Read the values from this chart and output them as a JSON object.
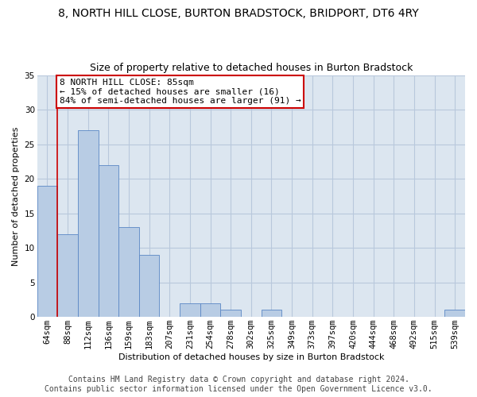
{
  "title": "8, NORTH HILL CLOSE, BURTON BRADSTOCK, BRIDPORT, DT6 4RY",
  "subtitle": "Size of property relative to detached houses in Burton Bradstock",
  "xlabel": "Distribution of detached houses by size in Burton Bradstock",
  "ylabel": "Number of detached properties",
  "categories": [
    "64sqm",
    "88sqm",
    "112sqm",
    "136sqm",
    "159sqm",
    "183sqm",
    "207sqm",
    "231sqm",
    "254sqm",
    "278sqm",
    "302sqm",
    "325sqm",
    "349sqm",
    "373sqm",
    "397sqm",
    "420sqm",
    "444sqm",
    "468sqm",
    "492sqm",
    "515sqm",
    "539sqm"
  ],
  "values": [
    19,
    12,
    27,
    22,
    13,
    9,
    0,
    2,
    2,
    1,
    0,
    1,
    0,
    0,
    0,
    0,
    0,
    0,
    0,
    0,
    1
  ],
  "bar_color": "#b8cce4",
  "bar_edge_color": "#5a87c5",
  "property_line_x": 0.5,
  "property_line_color": "#cc0000",
  "annotation_text": "8 NORTH HILL CLOSE: 85sqm\n← 15% of detached houses are smaller (16)\n84% of semi-detached houses are larger (91) →",
  "annotation_box_color": "#cc0000",
  "ylim": [
    0,
    35
  ],
  "yticks": [
    0,
    5,
    10,
    15,
    20,
    25,
    30,
    35
  ],
  "footer_line1": "Contains HM Land Registry data © Crown copyright and database right 2024.",
  "footer_line2": "Contains public sector information licensed under the Open Government Licence v3.0.",
  "background_color": "#ffffff",
  "plot_bg_color": "#dce6f0",
  "grid_color": "#b8c8dc",
  "title_fontsize": 10,
  "subtitle_fontsize": 9,
  "axis_label_fontsize": 8,
  "tick_fontsize": 7.5,
  "footer_fontsize": 7,
  "annotation_fontsize": 8
}
